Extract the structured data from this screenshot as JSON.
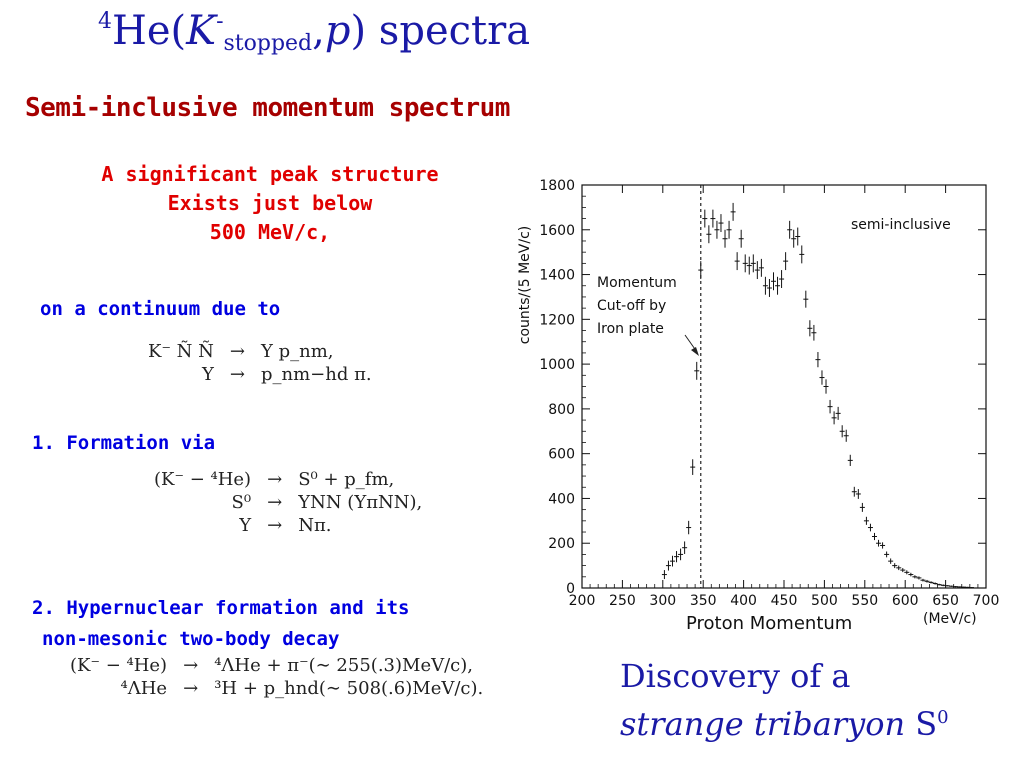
{
  "slide": {
    "title_pre": "He(",
    "title_superscript": "4",
    "title_K": "K",
    "title_K_charge": "-",
    "title_subscript": "stopped",
    "title_post_comma": ",",
    "title_p": "p",
    "title_post": ") spectra",
    "subtitle": "Semi-inclusive momentum spectrum",
    "peak_note_lines": [
      "A significant peak structure",
      "Exists just  below",
      "500 MeV/c,"
    ],
    "continuum_label": "on a continuum due to",
    "formation_label": "1. Formation via",
    "hyper_label_1": "2. Hypernuclear formation and its",
    "hyper_label_2": "non-mesonic two-body decay",
    "discovery_line1": "Discovery of a",
    "discovery_line2_italic": "strange tribaryon",
    "discovery_line2_S": " S",
    "discovery_line2_sup": "0"
  },
  "equations": {
    "continuum": [
      {
        "lhs": "K⁻ Ñ Ñ",
        "arrow": "→",
        "rhs": "Y p_nm,"
      },
      {
        "lhs": "Y",
        "arrow": "→",
        "rhs": "p_nm−hd π."
      }
    ],
    "formation": [
      {
        "lhs": "(K⁻ − ⁴He)",
        "arrow": "→",
        "rhs": "S⁰ + p_fm,"
      },
      {
        "lhs": "S⁰",
        "arrow": "→",
        "rhs": "YNN (YπNN),"
      },
      {
        "lhs": "Y",
        "arrow": "→",
        "rhs": "Nπ."
      }
    ],
    "hypernuclear": [
      {
        "lhs": "(K⁻ − ⁴He)",
        "arrow": "→",
        "rhs": "⁴ΛHe + π⁻(∼ 255(.3)MeV/c),"
      },
      {
        "lhs": "⁴ΛHe",
        "arrow": "→",
        "rhs": "³H + p_hnd(∼ 508(.6)MeV/c)."
      }
    ]
  },
  "chart_data": {
    "type": "scatter",
    "title": "",
    "xlabel": "Proton Momentum",
    "xunit": "(MeV/c)",
    "ylabel": "counts/(5 MeV/c)",
    "xlim": [
      200,
      700
    ],
    "ylim": [
      0,
      1800
    ],
    "xticks": [
      200,
      250,
      300,
      350,
      400,
      450,
      500,
      550,
      600,
      650,
      700
    ],
    "yticks": [
      0,
      200,
      400,
      600,
      800,
      1000,
      1200,
      1400,
      1600,
      1800
    ],
    "legend_label": "semi-inclusive",
    "cutoff_x": 347,
    "cutoff_label": [
      "Momentum",
      "Cut-off by",
      "Iron plate"
    ],
    "series": [
      {
        "x": [
          302,
          307,
          312,
          317,
          322,
          327,
          332,
          337,
          342,
          347,
          352,
          357,
          362,
          367,
          372,
          377,
          382,
          387,
          392,
          397,
          402,
          407,
          412,
          417,
          422,
          427,
          432,
          437,
          442,
          447,
          452,
          457,
          462,
          467,
          472,
          477,
          482,
          487,
          492,
          497,
          502,
          507,
          512,
          517,
          522,
          527,
          532,
          537,
          542,
          547,
          552,
          557,
          562,
          567,
          572,
          577,
          582,
          587,
          592,
          597,
          602,
          607,
          612,
          617,
          622,
          627,
          632,
          637,
          642,
          647,
          652,
          657,
          662,
          667,
          672,
          677,
          682
        ],
        "y": [
          60,
          100,
          120,
          140,
          150,
          180,
          270,
          540,
          970,
          1420,
          1650,
          1580,
          1650,
          1600,
          1630,
          1560,
          1600,
          1680,
          1460,
          1560,
          1450,
          1440,
          1450,
          1420,
          1430,
          1350,
          1340,
          1370,
          1350,
          1380,
          1460,
          1600,
          1560,
          1570,
          1490,
          1290,
          1160,
          1140,
          1020,
          940,
          900,
          810,
          760,
          780,
          700,
          680,
          570,
          430,
          420,
          360,
          300,
          270,
          230,
          200,
          190,
          150,
          120,
          100,
          90,
          80,
          70,
          60,
          50,
          45,
          35,
          30,
          25,
          20,
          15,
          12,
          10,
          8,
          6,
          5,
          4,
          3,
          2
        ],
        "err": [
          20,
          22,
          24,
          25,
          26,
          28,
          30,
          35,
          40,
          40,
          40,
          40,
          40,
          40,
          40,
          40,
          40,
          40,
          40,
          40,
          40,
          40,
          40,
          40,
          40,
          40,
          40,
          40,
          40,
          40,
          40,
          40,
          40,
          40,
          40,
          38,
          36,
          35,
          34,
          32,
          32,
          30,
          29,
          29,
          27,
          27,
          25,
          22,
          22,
          20,
          18,
          17,
          16,
          15,
          14,
          13,
          12,
          11,
          10,
          9,
          9,
          8,
          7,
          7,
          6,
          6,
          5,
          5,
          4,
          4,
          3,
          3,
          3,
          2,
          2,
          2,
          2
        ]
      }
    ]
  }
}
